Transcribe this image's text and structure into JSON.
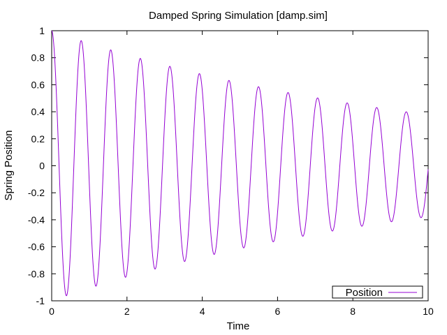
{
  "chart_data": {
    "type": "line",
    "title": "Damped Spring Simulation [damp.sim]",
    "xlabel": "Time",
    "ylabel": "Spring Position",
    "xlim": [
      0,
      10
    ],
    "ylim": [
      -1,
      1
    ],
    "x_ticks": [
      "0",
      "2",
      "4",
      "6",
      "8",
      "10"
    ],
    "y_ticks": [
      "1",
      "0.8",
      "0.6",
      "0.4",
      "0.2",
      "0",
      "-0.2",
      "-0.4",
      "-0.6",
      "-0.8",
      "-1"
    ],
    "grid": false,
    "legend_position": "bottom-right",
    "series": [
      {
        "name": "Position",
        "color": "#9400d3",
        "model": "damped-cosine",
        "amplitude": 1.0,
        "decay_rate": 0.0975,
        "period": 0.785,
        "x": [
          0,
          0.35,
          0.75,
          1.15,
          1.55,
          1.95,
          2.35,
          2.75,
          3.15,
          3.55,
          3.9,
          4.3,
          4.7,
          5.1,
          5.5,
          5.85,
          6.25,
          6.65,
          7.05,
          7.45,
          7.85,
          8.2,
          8.6,
          9.0,
          9.4,
          9.8,
          10
        ],
        "values": [
          1.0,
          -0.96,
          0.92,
          -0.89,
          0.86,
          -0.83,
          0.79,
          -0.76,
          0.73,
          -0.7,
          0.67,
          -0.65,
          0.62,
          -0.6,
          0.57,
          -0.55,
          0.53,
          -0.51,
          0.49,
          -0.47,
          0.45,
          -0.44,
          0.42,
          -0.41,
          0.39,
          -0.37,
          0.0
        ]
      }
    ]
  }
}
